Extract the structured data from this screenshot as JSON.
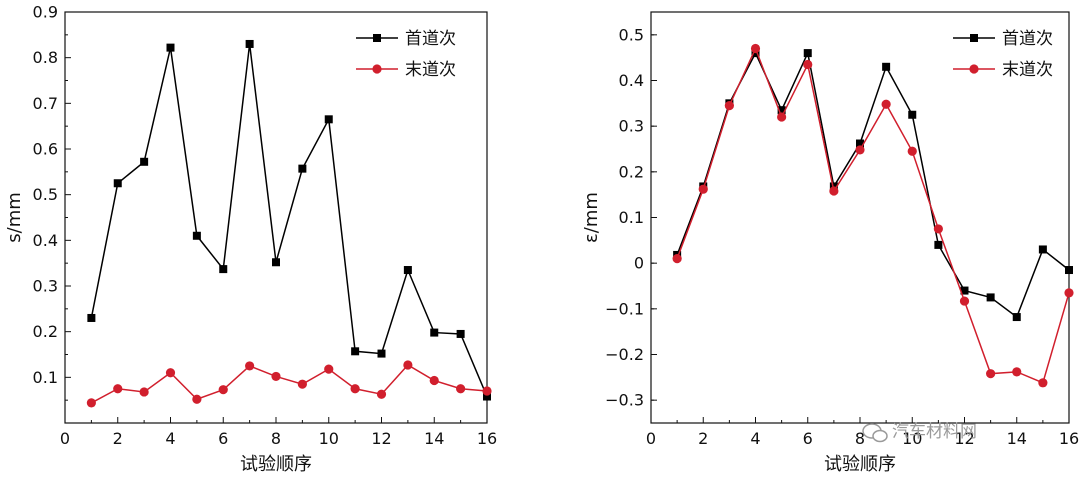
{
  "watermark": "汽车材料网",
  "chart_data": [
    {
      "type": "line",
      "xlabel": "试验顺序",
      "ylabel": "s/mm",
      "xlim": [
        0,
        16
      ],
      "ylim": [
        0,
        0.9
      ],
      "xticks": [
        0,
        2,
        4,
        6,
        8,
        10,
        12,
        14,
        16
      ],
      "yticks": [
        0.1,
        0.2,
        0.3,
        0.4,
        0.5,
        0.6,
        0.7,
        0.8,
        0.9
      ],
      "grid": false,
      "legend_position": "top-right",
      "x": [
        1,
        2,
        3,
        4,
        5,
        6,
        7,
        8,
        9,
        10,
        11,
        12,
        13,
        14,
        15,
        16
      ],
      "series": [
        {
          "name": "首道次",
          "color": "#000000",
          "marker": "square",
          "values": [
            0.23,
            0.525,
            0.572,
            0.822,
            0.41,
            0.337,
            0.83,
            0.352,
            0.557,
            0.665,
            0.157,
            0.152,
            0.335,
            0.198,
            0.195,
            0.058
          ]
        },
        {
          "name": "末道次",
          "color": "#d11f2d",
          "marker": "circle",
          "values": [
            0.044,
            0.075,
            0.068,
            0.11,
            0.052,
            0.073,
            0.125,
            0.102,
            0.085,
            0.118,
            0.075,
            0.063,
            0.127,
            0.093,
            0.075,
            0.07
          ]
        }
      ]
    },
    {
      "type": "line",
      "xlabel": "试验顺序",
      "ylabel": "ε/mm",
      "xlim": [
        0,
        16
      ],
      "ylim": [
        -0.35,
        0.55
      ],
      "xticks": [
        0,
        2,
        4,
        6,
        8,
        10,
        12,
        14,
        16
      ],
      "yticks": [
        -0.3,
        -0.2,
        -0.1,
        0,
        0.1,
        0.2,
        0.3,
        0.4,
        0.5
      ],
      "grid": false,
      "legend_position": "top-right",
      "x": [
        1,
        2,
        3,
        4,
        5,
        6,
        7,
        8,
        9,
        10,
        11,
        12,
        13,
        14,
        15,
        16
      ],
      "series": [
        {
          "name": "首道次",
          "color": "#000000",
          "marker": "square",
          "values": [
            0.018,
            0.168,
            0.35,
            0.46,
            0.335,
            0.46,
            0.168,
            0.262,
            0.43,
            0.325,
            0.04,
            -0.06,
            -0.075,
            -0.118,
            0.03,
            -0.015
          ]
        },
        {
          "name": "末道次",
          "color": "#d11f2d",
          "marker": "circle",
          "values": [
            0.01,
            0.162,
            0.345,
            0.47,
            0.32,
            0.435,
            0.158,
            0.248,
            0.348,
            0.245,
            0.075,
            -0.083,
            -0.242,
            -0.238,
            -0.262,
            -0.065
          ]
        }
      ]
    }
  ]
}
